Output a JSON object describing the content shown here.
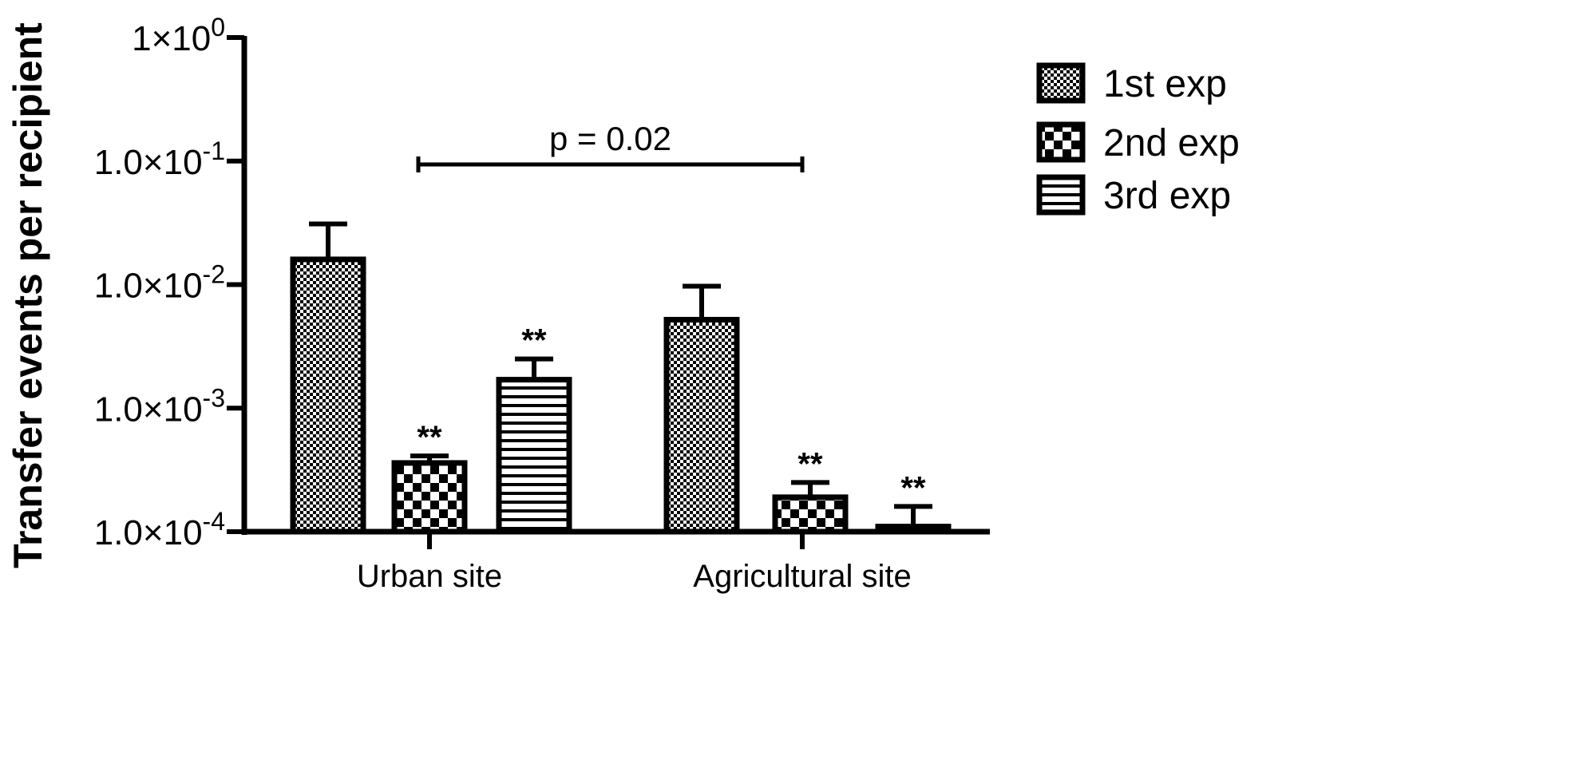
{
  "chart_data": {
    "type": "bar",
    "ylabel": "Transfer events per recipient",
    "xlabel": "",
    "yscale": "log",
    "ylim": [
      0.0001,
      1
    ],
    "yticks": [
      {
        "value": 1,
        "mantissa": "1×10",
        "exp": "0"
      },
      {
        "value": 0.1,
        "mantissa": "1.0×10",
        "exp": "-1"
      },
      {
        "value": 0.01,
        "mantissa": "1.0×10",
        "exp": "-2"
      },
      {
        "value": 0.001,
        "mantissa": "1.0×10",
        "exp": "-3"
      },
      {
        "value": 0.0001,
        "mantissa": "1.0×10",
        "exp": "-4"
      }
    ],
    "categories": [
      "Urban site",
      "Agricultural site"
    ],
    "series": [
      {
        "name": "1st exp",
        "pattern": "fine-checker",
        "values": [
          0.016,
          0.0052
        ],
        "errors_upper": [
          0.031,
          0.0097
        ],
        "significance": [
          "",
          ""
        ]
      },
      {
        "name": "2nd exp",
        "pattern": "coarse-checker",
        "values": [
          0.00036,
          0.00019
        ],
        "errors_upper": [
          0.00041,
          0.00025
        ],
        "significance": [
          "**",
          "**"
        ]
      },
      {
        "name": "3rd exp",
        "pattern": "horizontal-lines",
        "values": [
          0.0017,
          0.00011
        ],
        "errors_upper": [
          0.0025,
          0.00016
        ],
        "significance": [
          "**",
          "**"
        ]
      }
    ],
    "legend_position": "top-right",
    "annotation": {
      "text": "p = 0.02",
      "from_category": "Urban site",
      "to_category": "Agricultural site"
    },
    "grid": false
  }
}
